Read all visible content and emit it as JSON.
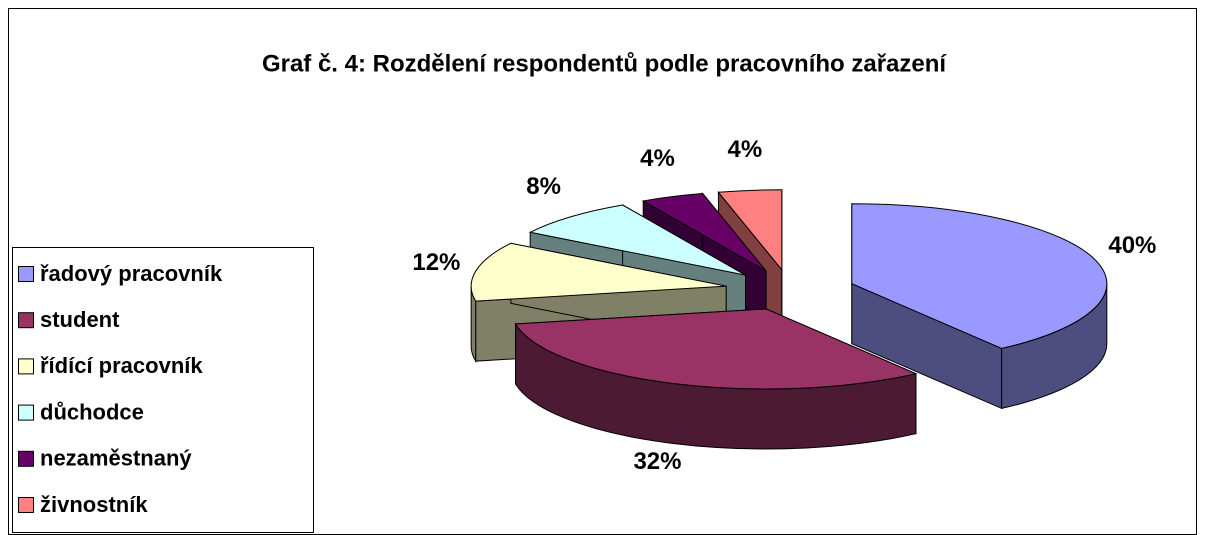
{
  "chart_data": {
    "type": "pie",
    "title": "Graf č. 4: Rozdělení respondentů podle pracovního zařazení",
    "categories": [
      "řadový pracovník",
      "student",
      "řídící pracovník",
      "důchodce",
      "nezaměstnaný",
      "živnostník"
    ],
    "values": [
      40,
      32,
      12,
      8,
      4,
      4
    ],
    "value_labels": [
      "40%",
      "32%",
      "12%",
      "8%",
      "4%",
      "4%"
    ],
    "colors": [
      "#9999ff",
      "#993366",
      "#ffffcc",
      "#ccffff",
      "#660066",
      "#ff8080"
    ],
    "legend": "left"
  }
}
